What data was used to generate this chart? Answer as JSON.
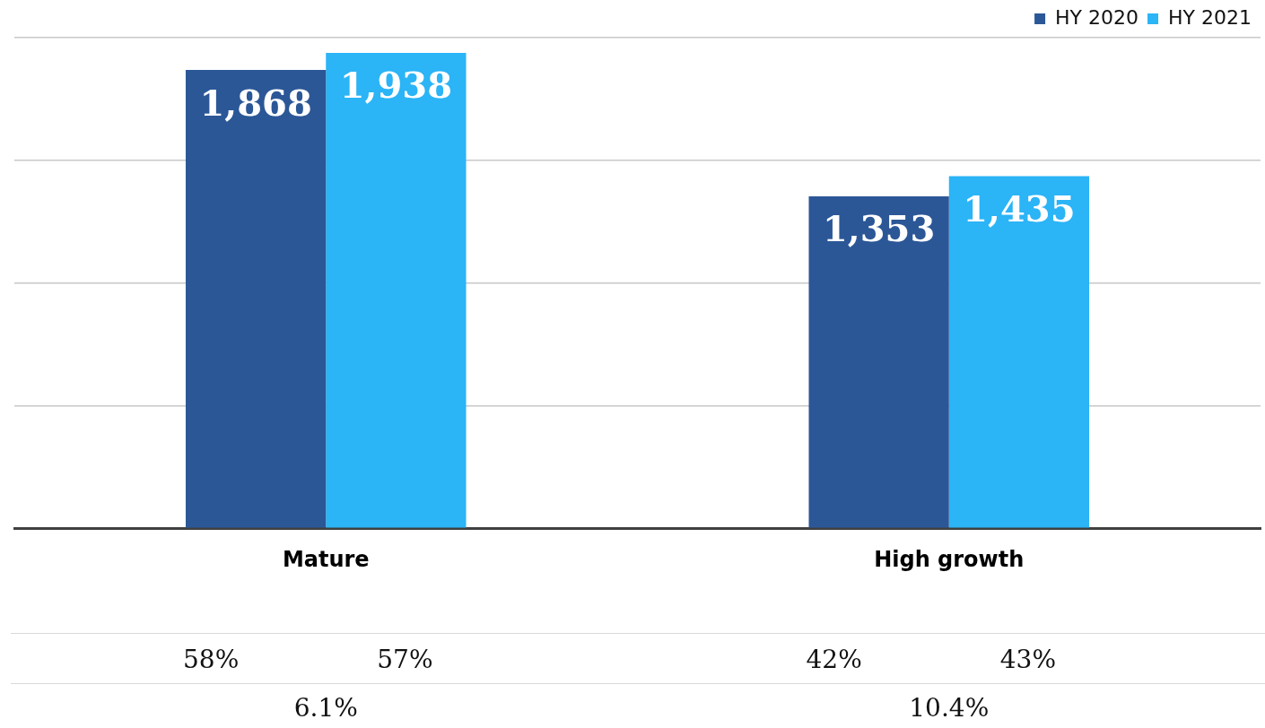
{
  "chart_data": {
    "type": "bar",
    "categories": [
      "Mature",
      "High growth"
    ],
    "series": [
      {
        "name": "HY 2020",
        "color": "#2b5797",
        "values": [
          1868,
          1353
        ],
        "value_labels": [
          "1,868",
          "1,353"
        ]
      },
      {
        "name": "HY 2021",
        "color": "#2bb4f6",
        "values": [
          1938,
          1435
        ],
        "value_labels": [
          "1,938",
          "1,435"
        ]
      }
    ],
    "grid": "y",
    "legend": "top right",
    "tick_labels": "x",
    "annotations": [
      "58%",
      "57%",
      "42%",
      "43%",
      "6.1%",
      "10.4%"
    ]
  }
}
